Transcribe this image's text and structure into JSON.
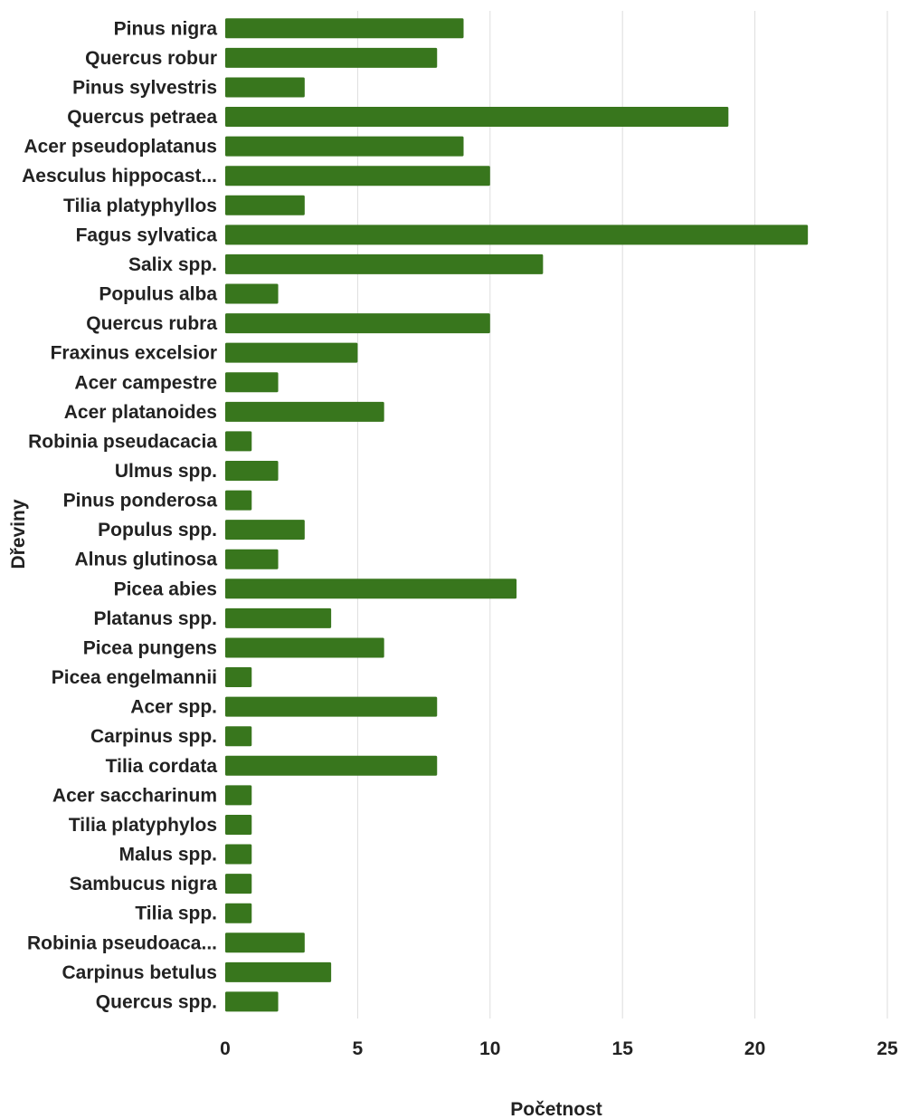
{
  "chart_data": {
    "type": "bar",
    "orientation": "horizontal",
    "categories": [
      "Pinus nigra",
      "Quercus robur",
      "Pinus sylvestris",
      "Quercus petraea",
      "Acer pseudoplatanus",
      "Aesculus hippocast...",
      "Tilia platyphyllos",
      "Fagus sylvatica",
      "Salix spp.",
      "Populus alba",
      "Quercus rubra",
      "Fraxinus excelsior",
      "Acer campestre",
      "Acer platanoides",
      "Robinia pseudacacia",
      "Ulmus spp.",
      "Pinus ponderosa",
      "Populus spp.",
      "Alnus glutinosa",
      "Picea abies",
      "Platanus spp.",
      "Picea pungens",
      "Picea engelmannii",
      "Acer spp.",
      "Carpinus spp.",
      "Tilia cordata",
      "Acer saccharinum",
      "Tilia platyphylos",
      "Malus spp.",
      "Sambucus nigra",
      "Tilia spp.",
      "Robinia pseudoaca...",
      "Carpinus betulus",
      "Quercus spp."
    ],
    "values": [
      9,
      8,
      3,
      19,
      9,
      10,
      3,
      22,
      12,
      2,
      10,
      5,
      2,
      6,
      1,
      2,
      1,
      3,
      2,
      11,
      4,
      6,
      1,
      8,
      1,
      8,
      1,
      1,
      1,
      1,
      1,
      3,
      4,
      2
    ],
    "xlabel": "Početnost",
    "ylabel": "Dřeviny",
    "xlim": [
      0,
      25
    ],
    "xticks": [
      "0",
      "5",
      "10",
      "15",
      "20",
      "25"
    ],
    "grid": "vertical",
    "bar_color": "#38761d",
    "legend": "none"
  }
}
